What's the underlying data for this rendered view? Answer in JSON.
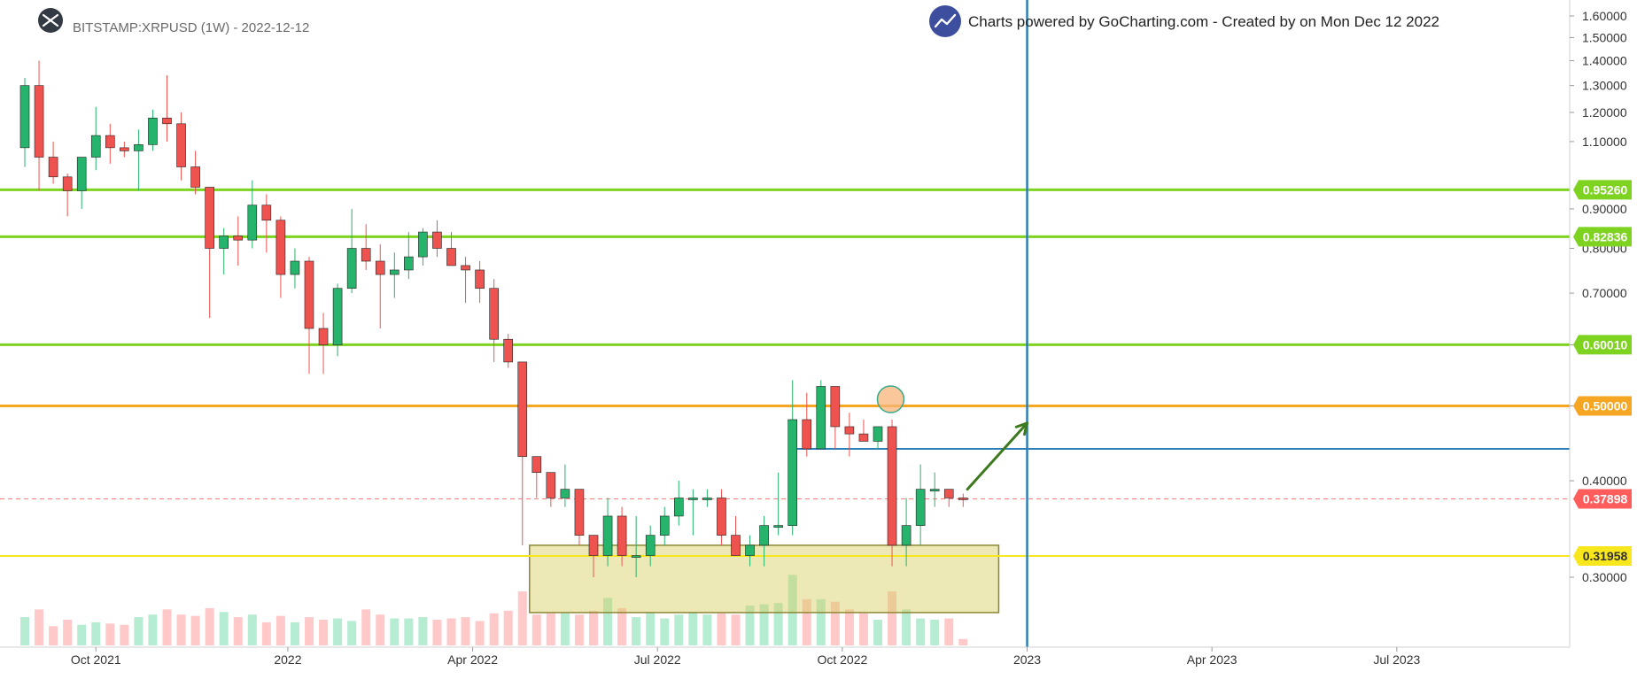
{
  "header": {
    "symbol_label": "BITSTAMP:XRPUSD (1W) - 2022-12-12",
    "credit": "Charts powered by GoCharting.com - Created by  on Mon Dec 12 2022"
  },
  "colors": {
    "up": "#26b36b",
    "down": "#ef5350",
    "up_volume": "#b5ecd2",
    "down_volume": "#ffc9c9",
    "green_level": "#7ed321",
    "orange_level": "#f5a623",
    "yellow_level": "#f8e71c",
    "blue_line": "#2d7fb8",
    "current_price": "#ff5c5c"
  },
  "chart_data": {
    "type": "candlestick",
    "y_scale": "log",
    "ylim": [
      0.2,
      1.65
    ],
    "y_ticks": [
      {
        "value": 1.6,
        "label": "1.60000"
      },
      {
        "value": 1.5,
        "label": "1.50000"
      },
      {
        "value": 1.4,
        "label": "1.40000"
      },
      {
        "value": 1.3,
        "label": "1.30000"
      },
      {
        "value": 1.2,
        "label": "1.20000"
      },
      {
        "value": 1.1,
        "label": "1.10000"
      },
      {
        "value": 0.9,
        "label": "0.90000"
      },
      {
        "value": 0.8,
        "label": "0.80000"
      },
      {
        "value": 0.7,
        "label": "0.70000"
      },
      {
        "value": 0.6,
        "label": "0.60000"
      },
      {
        "value": 0.5,
        "label": "0.50000"
      },
      {
        "value": 0.4,
        "label": "0.40000"
      },
      {
        "value": 0.3,
        "label": "0.30000"
      }
    ],
    "x_ticks": [
      {
        "index": 5,
        "label": "Oct 2021"
      },
      {
        "index": 18.5,
        "label": "2022"
      },
      {
        "index": 31.5,
        "label": "Apr 2022"
      },
      {
        "index": 44.5,
        "label": "Jul 2022"
      },
      {
        "index": 57.5,
        "label": "Oct 2022"
      },
      {
        "index": 70.5,
        "label": "2023"
      },
      {
        "index": 83.5,
        "label": "Apr 2023"
      },
      {
        "index": 96.5,
        "label": "Jul 2023"
      }
    ],
    "candles": [
      {
        "o": 1.08,
        "h": 1.33,
        "l": 1.02,
        "c": 1.3,
        "v": 0.22
      },
      {
        "o": 1.3,
        "h": 1.4,
        "l": 0.95,
        "c": 1.05,
        "v": 0.28
      },
      {
        "o": 1.05,
        "h": 1.1,
        "l": 0.97,
        "c": 0.99,
        "v": 0.15
      },
      {
        "o": 0.99,
        "h": 1.0,
        "l": 0.88,
        "c": 0.95,
        "v": 0.2
      },
      {
        "o": 0.95,
        "h": 1.05,
        "l": 0.9,
        "c": 1.05,
        "v": 0.16
      },
      {
        "o": 1.05,
        "h": 1.22,
        "l": 1.01,
        "c": 1.12,
        "v": 0.18
      },
      {
        "o": 1.12,
        "h": 1.16,
        "l": 1.03,
        "c": 1.08,
        "v": 0.17
      },
      {
        "o": 1.08,
        "h": 1.1,
        "l": 1.05,
        "c": 1.07,
        "v": 0.16
      },
      {
        "o": 1.07,
        "h": 1.14,
        "l": 0.95,
        "c": 1.09,
        "v": 0.22
      },
      {
        "o": 1.09,
        "h": 1.21,
        "l": 1.07,
        "c": 1.18,
        "v": 0.24
      },
      {
        "o": 1.18,
        "h": 1.34,
        "l": 1.1,
        "c": 1.16,
        "v": 0.28
      },
      {
        "o": 1.16,
        "h": 1.2,
        "l": 0.98,
        "c": 1.02,
        "v": 0.24
      },
      {
        "o": 1.02,
        "h": 1.07,
        "l": 0.94,
        "c": 0.96,
        "v": 0.23
      },
      {
        "o": 0.96,
        "h": 0.96,
        "l": 0.65,
        "c": 0.8,
        "v": 0.29
      },
      {
        "o": 0.8,
        "h": 0.85,
        "l": 0.74,
        "c": 0.83,
        "v": 0.26
      },
      {
        "o": 0.83,
        "h": 0.88,
        "l": 0.76,
        "c": 0.82,
        "v": 0.22
      },
      {
        "o": 0.82,
        "h": 0.98,
        "l": 0.8,
        "c": 0.91,
        "v": 0.24
      },
      {
        "o": 0.91,
        "h": 0.94,
        "l": 0.79,
        "c": 0.87,
        "v": 0.18
      },
      {
        "o": 0.87,
        "h": 0.88,
        "l": 0.69,
        "c": 0.74,
        "v": 0.23
      },
      {
        "o": 0.74,
        "h": 0.8,
        "l": 0.71,
        "c": 0.77,
        "v": 0.18
      },
      {
        "o": 0.77,
        "h": 0.78,
        "l": 0.55,
        "c": 0.63,
        "v": 0.22
      },
      {
        "o": 0.63,
        "h": 0.66,
        "l": 0.55,
        "c": 0.6,
        "v": 0.2
      },
      {
        "o": 0.6,
        "h": 0.72,
        "l": 0.58,
        "c": 0.71,
        "v": 0.21
      },
      {
        "o": 0.71,
        "h": 0.9,
        "l": 0.7,
        "c": 0.8,
        "v": 0.19
      },
      {
        "o": 0.8,
        "h": 0.86,
        "l": 0.75,
        "c": 0.77,
        "v": 0.28
      },
      {
        "o": 0.77,
        "h": 0.81,
        "l": 0.63,
        "c": 0.74,
        "v": 0.24
      },
      {
        "o": 0.74,
        "h": 0.79,
        "l": 0.69,
        "c": 0.75,
        "v": 0.21
      },
      {
        "o": 0.75,
        "h": 0.84,
        "l": 0.73,
        "c": 0.78,
        "v": 0.21
      },
      {
        "o": 0.78,
        "h": 0.85,
        "l": 0.76,
        "c": 0.84,
        "v": 0.22
      },
      {
        "o": 0.84,
        "h": 0.87,
        "l": 0.78,
        "c": 0.8,
        "v": 0.2
      },
      {
        "o": 0.8,
        "h": 0.84,
        "l": 0.76,
        "c": 0.76,
        "v": 0.21
      },
      {
        "o": 0.76,
        "h": 0.78,
        "l": 0.68,
        "c": 0.75,
        "v": 0.22
      },
      {
        "o": 0.75,
        "h": 0.77,
        "l": 0.68,
        "c": 0.71,
        "v": 0.19
      },
      {
        "o": 0.71,
        "h": 0.73,
        "l": 0.57,
        "c": 0.61,
        "v": 0.25
      },
      {
        "o": 0.61,
        "h": 0.62,
        "l": 0.56,
        "c": 0.57,
        "v": 0.27
      },
      {
        "o": 0.57,
        "h": 0.57,
        "l": 0.33,
        "c": 0.43,
        "v": 0.42
      },
      {
        "o": 0.43,
        "h": 0.43,
        "l": 0.38,
        "c": 0.41,
        "v": 0.24
      },
      {
        "o": 0.41,
        "h": 0.41,
        "l": 0.37,
        "c": 0.38,
        "v": 0.25
      },
      {
        "o": 0.38,
        "h": 0.42,
        "l": 0.37,
        "c": 0.39,
        "v": 0.25
      },
      {
        "o": 0.39,
        "h": 0.39,
        "l": 0.33,
        "c": 0.34,
        "v": 0.24
      },
      {
        "o": 0.34,
        "h": 0.34,
        "l": 0.3,
        "c": 0.32,
        "v": 0.27
      },
      {
        "o": 0.32,
        "h": 0.38,
        "l": 0.31,
        "c": 0.36,
        "v": 0.37
      },
      {
        "o": 0.36,
        "h": 0.37,
        "l": 0.31,
        "c": 0.32,
        "v": 0.29
      },
      {
        "o": 0.32,
        "h": 0.36,
        "l": 0.3,
        "c": 0.32,
        "v": 0.22
      },
      {
        "o": 0.32,
        "h": 0.35,
        "l": 0.31,
        "c": 0.34,
        "v": 0.26
      },
      {
        "o": 0.34,
        "h": 0.37,
        "l": 0.33,
        "c": 0.36,
        "v": 0.21
      },
      {
        "o": 0.36,
        "h": 0.4,
        "l": 0.35,
        "c": 0.38,
        "v": 0.24
      },
      {
        "o": 0.38,
        "h": 0.39,
        "l": 0.34,
        "c": 0.38,
        "v": 0.26
      },
      {
        "o": 0.38,
        "h": 0.39,
        "l": 0.37,
        "c": 0.38,
        "v": 0.24
      },
      {
        "o": 0.38,
        "h": 0.39,
        "l": 0.33,
        "c": 0.34,
        "v": 0.25
      },
      {
        "o": 0.34,
        "h": 0.36,
        "l": 0.32,
        "c": 0.32,
        "v": 0.24
      },
      {
        "o": 0.32,
        "h": 0.34,
        "l": 0.31,
        "c": 0.33,
        "v": 0.31
      },
      {
        "o": 0.33,
        "h": 0.36,
        "l": 0.31,
        "c": 0.35,
        "v": 0.32
      },
      {
        "o": 0.35,
        "h": 0.41,
        "l": 0.34,
        "c": 0.35,
        "v": 0.33
      },
      {
        "o": 0.35,
        "h": 0.54,
        "l": 0.34,
        "c": 0.48,
        "v": 0.55
      },
      {
        "o": 0.48,
        "h": 0.52,
        "l": 0.43,
        "c": 0.44,
        "v": 0.36
      },
      {
        "o": 0.44,
        "h": 0.54,
        "l": 0.44,
        "c": 0.53,
        "v": 0.36
      },
      {
        "o": 0.53,
        "h": 0.53,
        "l": 0.44,
        "c": 0.47,
        "v": 0.34
      },
      {
        "o": 0.47,
        "h": 0.49,
        "l": 0.43,
        "c": 0.46,
        "v": 0.28
      },
      {
        "o": 0.46,
        "h": 0.48,
        "l": 0.45,
        "c": 0.45,
        "v": 0.25
      },
      {
        "o": 0.45,
        "h": 0.47,
        "l": 0.44,
        "c": 0.47,
        "v": 0.2
      },
      {
        "o": 0.47,
        "h": 0.48,
        "l": 0.31,
        "c": 0.33,
        "v": 0.42
      },
      {
        "o": 0.33,
        "h": 0.38,
        "l": 0.31,
        "c": 0.35,
        "v": 0.28
      },
      {
        "o": 0.35,
        "h": 0.42,
        "l": 0.33,
        "c": 0.39,
        "v": 0.21
      },
      {
        "o": 0.39,
        "h": 0.41,
        "l": 0.37,
        "c": 0.39,
        "v": 0.2
      },
      {
        "o": 0.39,
        "h": 0.39,
        "l": 0.37,
        "c": 0.38,
        "v": 0.21
      },
      {
        "o": 0.38,
        "h": 0.385,
        "l": 0.37,
        "c": 0.379,
        "v": 0.05
      }
    ],
    "levels": [
      {
        "value": 0.9526,
        "label": "0.95260",
        "color": "#7ed321",
        "line_width": 3
      },
      {
        "value": 0.82836,
        "label": "0.82836",
        "color": "#7ed321",
        "line_width": 3
      },
      {
        "value": 0.6001,
        "label": "0.60010",
        "color": "#7ed321",
        "line_width": 3
      },
      {
        "value": 0.5,
        "label": "0.50000",
        "color": "#f5a623",
        "line_width": 3
      },
      {
        "value": 0.31958,
        "label": "0.31958",
        "color": "#f8e71c",
        "line_width": 2
      }
    ],
    "current_price": {
      "value": 0.37898,
      "label": "0.37898"
    },
    "horizontal_segment": {
      "value": 0.44,
      "from_index": 54,
      "color": "#2d7fb8"
    },
    "vertical_line_index": 70.5,
    "zone": {
      "from_index": 35.5,
      "to_index": 68.5,
      "top": 0.33,
      "bottom": 0.27
    },
    "circle_marker": {
      "index": 60.9,
      "value": 0.51
    },
    "arrow": {
      "from_index": 66.3,
      "from_value": 0.39,
      "to_index": 70.5,
      "to_value": 0.475
    }
  }
}
